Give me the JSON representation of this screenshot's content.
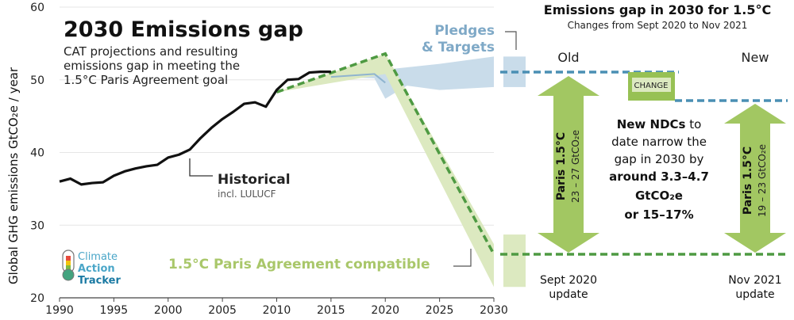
{
  "chart_data": {
    "type": "line",
    "title": "2030 Emissions gap",
    "subtitle_lines": [
      "CAT projections and resulting",
      "emissions gap in meeting the",
      "1.5°C Paris Agreement goal"
    ],
    "ylabel": "Global GHG emissions  GtCO₂e / year",
    "xlim": [
      1990,
      2030
    ],
    "ylim": [
      20,
      60
    ],
    "x_ticks": [
      1990,
      1995,
      2000,
      2005,
      2010,
      2015,
      2020,
      2025,
      2030
    ],
    "y_ticks": [
      20,
      30,
      40,
      50,
      60
    ],
    "series": [
      {
        "name": "Historical",
        "points": [
          [
            1990,
            36.0
          ],
          [
            1991,
            36.4
          ],
          [
            1992,
            35.6
          ],
          [
            1993,
            35.8
          ],
          [
            1994,
            35.9
          ],
          [
            1995,
            36.8
          ],
          [
            1996,
            37.4
          ],
          [
            1997,
            37.8
          ],
          [
            1998,
            38.1
          ],
          [
            1999,
            38.3
          ],
          [
            2000,
            39.3
          ],
          [
            2001,
            39.7
          ],
          [
            2002,
            40.4
          ],
          [
            2003,
            42.0
          ],
          [
            2004,
            43.4
          ],
          [
            2005,
            44.6
          ],
          [
            2006,
            45.6
          ],
          [
            2007,
            46.7
          ],
          [
            2008,
            46.9
          ],
          [
            2009,
            46.3
          ],
          [
            2010,
            48.6
          ],
          [
            2011,
            50.0
          ],
          [
            2012,
            50.1
          ],
          [
            2013,
            51.0
          ],
          [
            2014,
            51.1
          ],
          [
            2015,
            51.1
          ]
        ]
      },
      {
        "name": "Pledges & Targets",
        "band_upper": [
          [
            2015,
            50.4
          ],
          [
            2020,
            51.4
          ],
          [
            2025,
            52.2
          ],
          [
            2030,
            53.2
          ]
        ],
        "band_lower": [
          [
            2015,
            50.4
          ],
          [
            2019,
            50.2
          ],
          [
            2020,
            47.4
          ],
          [
            2022,
            49.2
          ],
          [
            2025,
            48.6
          ],
          [
            2030,
            49.0
          ]
        ],
        "line": [
          [
            2015,
            50.4
          ],
          [
            2019,
            50.8
          ],
          [
            2020,
            49.6
          ]
        ]
      },
      {
        "name": "1.5°C Paris Agreement compatible",
        "band_upper": [
          [
            2010,
            48.3
          ],
          [
            2020,
            53.6
          ],
          [
            2030,
            27.4
          ]
        ],
        "band_lower": [
          [
            2010,
            48.3
          ],
          [
            2020,
            50.8
          ],
          [
            2030,
            21.5
          ]
        ],
        "line": [
          [
            2010,
            48.3
          ],
          [
            2020,
            53.6
          ],
          [
            2030,
            26.0
          ]
        ]
      }
    ],
    "gap_2030": {
      "pledges_range_old": [
        49.0,
        53.2
      ],
      "paris_range_old": [
        21.5,
        27.4
      ],
      "old_line": 51.0,
      "new_line": 47.2,
      "paris_line": 26.0
    }
  },
  "annotations": {
    "historical_label": "Historical",
    "historical_sub": "incl. LULUCF",
    "pledges_label_1": "Pledges",
    "pledges_label_2": "& Targets",
    "paris_label": "1.5°C Paris Agreement compatible"
  },
  "logo": {
    "line1": "Climate",
    "line2": "Action",
    "line3": "Tracker"
  },
  "right_panel": {
    "title": "Emissions gap in 2030 for 1.5°C",
    "subtitle": "Changes from Sept 2020 to Nov 2021",
    "old_label": "Old",
    "new_label": "New",
    "change_label": "CHANGE",
    "old_arrow_title": "Paris 1.5°C",
    "old_arrow_range": "23 – 27 GtCO₂e",
    "new_arrow_title": "Paris 1.5°C",
    "new_arrow_range": "19 – 23 GtCO₂e",
    "ndc_lines": [
      {
        "text": "New NDCs",
        "bold": true,
        "suffix": " to"
      },
      {
        "text": "date narrow the",
        "bold": false,
        "suffix": ""
      },
      {
        "text": "gap in 2030 by",
        "bold": false,
        "suffix": ""
      },
      {
        "text": "around 3.3–4.7",
        "bold": true,
        "suffix": ""
      },
      {
        "text": "GtCO₂e",
        "bold": true,
        "suffix": ""
      },
      {
        "text": "or 15–17%",
        "bold": true,
        "suffix": ""
      }
    ],
    "old_update_1": "Sept 2020",
    "old_update_2": "update",
    "new_update_1": "Nov 2021",
    "new_update_2": "update"
  },
  "colors": {
    "historical": "#111111",
    "pledges_band": "#c9dcea",
    "pledges_text": "#7fa9c7",
    "paris_band": "#dce9c0",
    "paris_line": "#4e9a42",
    "paris_text": "#a9c76a",
    "blue_dash": "#4a8fb4",
    "arrow": "#a2c762",
    "change_box": "#97c154"
  }
}
